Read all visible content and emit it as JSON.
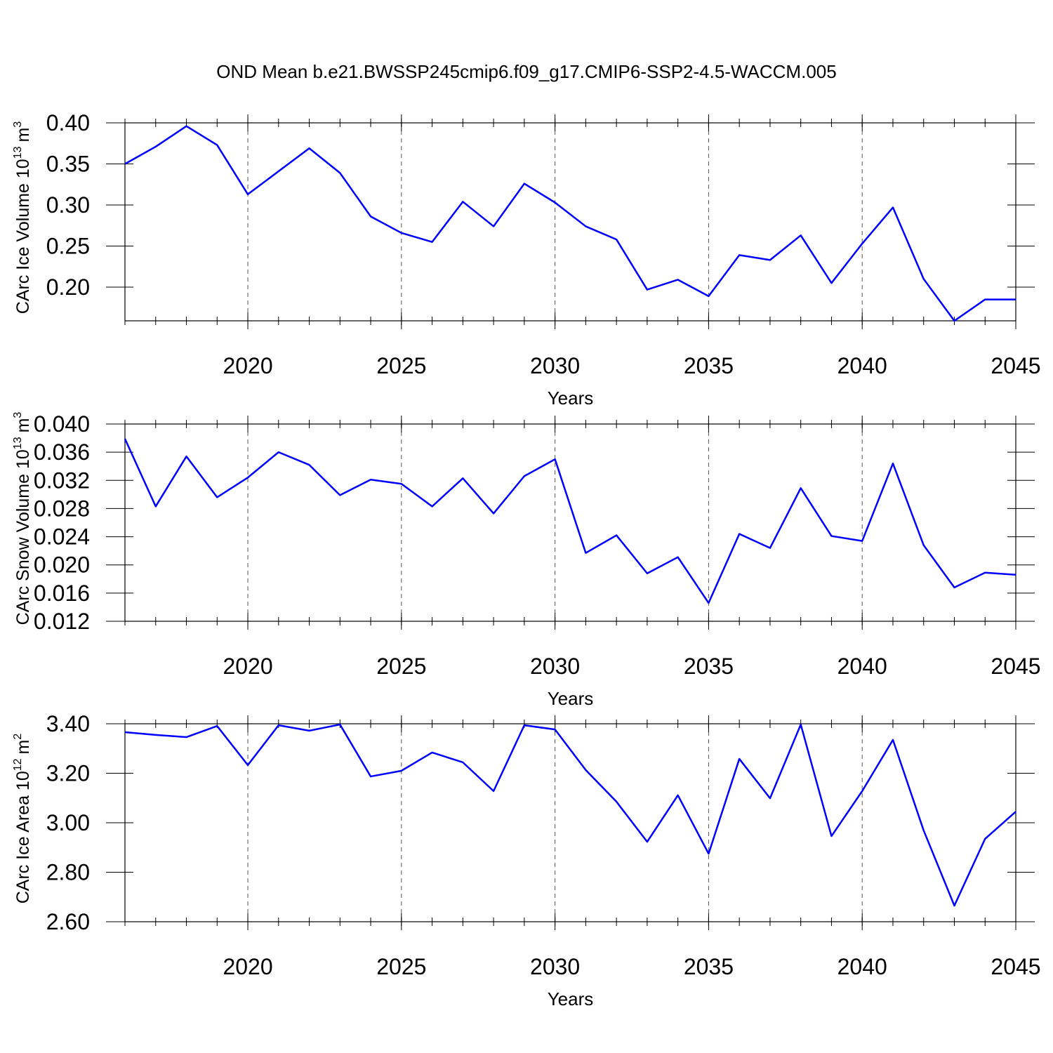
{
  "title": "OND Mean b.e21.BWSSP245cmip6.f09_g17.CMIP6-SSP2-4.5-WACCM.005",
  "chart_data": [
    {
      "type": "line",
      "xlabel": "Years",
      "ylabel": [
        "CArc Ice Volume 10",
        "13",
        "m",
        "3"
      ],
      "x": [
        2016,
        2017,
        2018,
        2019,
        2020,
        2021,
        2022,
        2023,
        2024,
        2025,
        2026,
        2027,
        2028,
        2029,
        2030,
        2031,
        2032,
        2033,
        2034,
        2035,
        2036,
        2037,
        2038,
        2039,
        2040,
        2041,
        2042,
        2043,
        2044,
        2045
      ],
      "series": [
        {
          "color": "#0000ff",
          "values": [
            0.35,
            0.371,
            0.396,
            0.373,
            0.313,
            0.341,
            0.369,
            0.339,
            0.286,
            0.266,
            0.255,
            0.304,
            0.274,
            0.326,
            0.303,
            0.274,
            0.258,
            0.197,
            0.209,
            0.189,
            0.239,
            0.233,
            0.263,
            0.205,
            0.253,
            0.297,
            0.21,
            0.159,
            0.185,
            0.185
          ]
        }
      ],
      "xlim": [
        2016,
        2045
      ],
      "xticks": [
        2020,
        2025,
        2030,
        2035,
        2040,
        2045
      ],
      "ylim": [
        0.159,
        0.4
      ],
      "yticks": [
        {
          "value": 0.4,
          "label": "0.40"
        },
        0.35,
        {
          "value": 0.3,
          "label": "0.30"
        },
        0.25,
        {
          "value": 0.2,
          "label": "0.20"
        }
      ],
      "grid": true
    },
    {
      "type": "line",
      "xlabel": "Years",
      "ylabel": [
        "CArc Snow Volume 10",
        "13",
        "m",
        "3"
      ],
      "x": [
        2016,
        2017,
        2018,
        2019,
        2020,
        2021,
        2022,
        2023,
        2024,
        2025,
        2026,
        2027,
        2028,
        2029,
        2030,
        2031,
        2032,
        2033,
        2034,
        2035,
        2036,
        2037,
        2038,
        2039,
        2040,
        2041,
        2042,
        2043,
        2044,
        2045
      ],
      "series": [
        {
          "color": "#0000ff",
          "values": [
            0.0379,
            0.0283,
            0.0354,
            0.0296,
            0.0324,
            0.036,
            0.0342,
            0.0299,
            0.0321,
            0.0315,
            0.0283,
            0.0323,
            0.0273,
            0.0326,
            0.035,
            0.0217,
            0.0242,
            0.0188,
            0.0211,
            0.0146,
            0.0244,
            0.0224,
            0.0309,
            0.0241,
            0.0234,
            0.0344,
            0.0228,
            0.0168,
            0.0189,
            0.0186
          ]
        }
      ],
      "xlim": [
        2016,
        2045
      ],
      "xticks": [
        2020,
        2025,
        2030,
        2035,
        2040,
        2045
      ],
      "ylim": [
        0.012,
        0.04
      ],
      "yticks": [
        {
          "value": 0.04,
          "label": "0.040"
        },
        0.036,
        0.032,
        0.028,
        0.024,
        {
          "value": 0.02,
          "label": "0.020"
        },
        0.016,
        0.012
      ],
      "grid": true
    },
    {
      "type": "line",
      "xlabel": "Years",
      "ylabel": [
        "CArc Ice Area 10",
        "12",
        "m",
        "2"
      ],
      "x": [
        2016,
        2017,
        2018,
        2019,
        2020,
        2021,
        2022,
        2023,
        2024,
        2025,
        2026,
        2027,
        2028,
        2029,
        2030,
        2031,
        2032,
        2033,
        2034,
        2035,
        2036,
        2037,
        2038,
        2039,
        2040,
        2041,
        2042,
        2043,
        2044,
        2045
      ],
      "series": [
        {
          "color": "#0000ff",
          "values": [
            3.366,
            3.355,
            3.346,
            3.391,
            3.233,
            3.394,
            3.372,
            3.397,
            3.187,
            3.21,
            3.284,
            3.244,
            3.128,
            3.394,
            3.377,
            3.213,
            3.085,
            2.923,
            3.111,
            2.875,
            3.258,
            3.099,
            3.397,
            2.946,
            3.128,
            3.335,
            2.969,
            2.665,
            2.935,
            3.045
          ]
        }
      ],
      "xlim": [
        2016,
        2045
      ],
      "xticks": [
        2020,
        2025,
        2030,
        2035,
        2040,
        2045
      ],
      "ylim": [
        2.6,
        3.4
      ],
      "yticks": [
        {
          "value": 3.4,
          "label": "3.40"
        },
        {
          "value": 3.2,
          "label": "3.20"
        },
        {
          "value": 3.0,
          "label": "3.00"
        },
        {
          "value": 2.8,
          "label": "2.80"
        },
        {
          "value": 2.6,
          "label": "2.60"
        }
      ],
      "grid": true
    }
  ]
}
